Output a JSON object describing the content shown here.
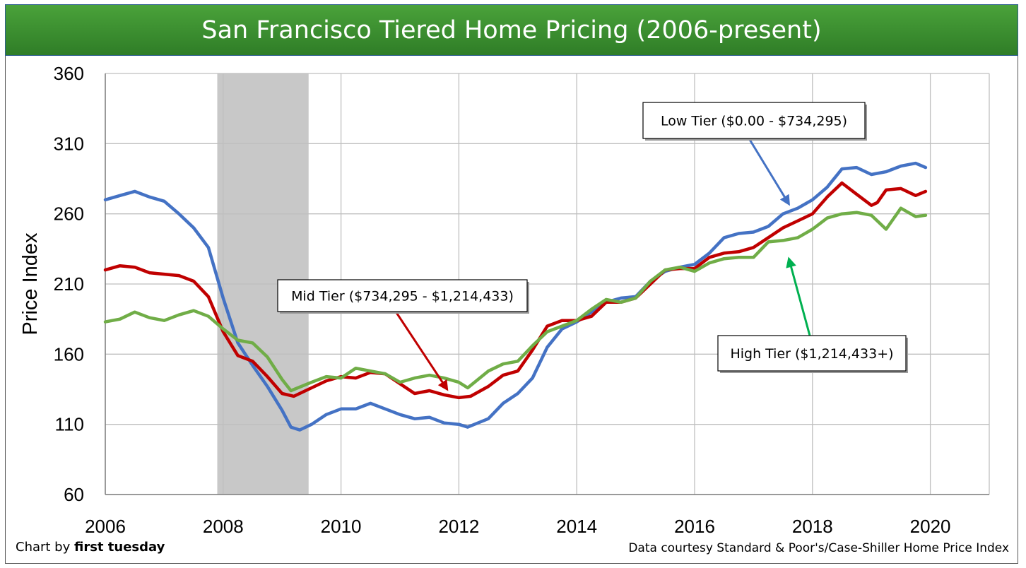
{
  "title": "San Francisco Tiered Home Pricing (2006-present)",
  "footer": {
    "credit_prefix": "Chart by ",
    "credit_name": "first tuesday",
    "source": "Data courtesy Standard & Poor's/Case-Shiller Home Price Index"
  },
  "chart_data": {
    "type": "line",
    "title": "San Francisco Tiered Home Pricing (2006-present)",
    "xlabel": "",
    "ylabel": "Price Index",
    "xlim": [
      2006,
      2021
    ],
    "ylim": [
      60,
      360
    ],
    "xticks": [
      2006,
      2008,
      2010,
      2012,
      2014,
      2016,
      2018,
      2020
    ],
    "yticks": [
      60,
      110,
      160,
      210,
      260,
      310,
      360
    ],
    "grid": true,
    "shaded_period": [
      2007.9,
      2009.45
    ],
    "shaded_color": "#c8c8c8",
    "series": [
      {
        "name": "Low Tier ($0.00 - $734,295)",
        "color": "#4472c4",
        "x": [
          2006.0,
          2006.25,
          2006.5,
          2006.75,
          2007.0,
          2007.25,
          2007.5,
          2007.75,
          2008.0,
          2008.25,
          2008.5,
          2008.75,
          2009.0,
          2009.15,
          2009.3,
          2009.5,
          2009.75,
          2010.0,
          2010.25,
          2010.5,
          2010.75,
          2011.0,
          2011.25,
          2011.5,
          2011.75,
          2012.0,
          2012.15,
          2012.5,
          2012.75,
          2013.0,
          2013.25,
          2013.5,
          2013.75,
          2014.0,
          2014.25,
          2014.5,
          2014.75,
          2015.0,
          2015.25,
          2015.5,
          2015.75,
          2016.0,
          2016.25,
          2016.5,
          2016.75,
          2017.0,
          2017.25,
          2017.5,
          2017.75,
          2018.0,
          2018.25,
          2018.5,
          2018.75,
          2019.0,
          2019.25,
          2019.5,
          2019.75,
          2019.92
        ],
        "values": [
          270,
          273,
          276,
          272,
          269,
          260,
          250,
          236,
          200,
          168,
          152,
          137,
          120,
          108,
          106,
          110,
          117,
          121,
          121,
          125,
          121,
          117,
          114,
          115,
          111,
          110,
          108,
          114,
          125,
          132,
          143,
          165,
          178,
          183,
          190,
          197,
          200,
          201,
          212,
          219,
          222,
          224,
          232,
          243,
          246,
          247,
          251,
          260,
          264,
          270,
          279,
          292,
          293,
          288,
          290,
          294,
          296,
          293
        ]
      },
      {
        "name": "Mid Tier ($734,295 - $1,214,433)",
        "color": "#c00000",
        "x": [
          2006.0,
          2006.25,
          2006.5,
          2006.75,
          2007.0,
          2007.25,
          2007.5,
          2007.75,
          2008.0,
          2008.25,
          2008.5,
          2008.75,
          2009.0,
          2009.2,
          2009.5,
          2009.75,
          2010.0,
          2010.25,
          2010.5,
          2010.75,
          2011.0,
          2011.25,
          2011.5,
          2011.75,
          2012.0,
          2012.2,
          2012.5,
          2012.75,
          2013.0,
          2013.25,
          2013.5,
          2013.75,
          2014.0,
          2014.25,
          2014.5,
          2014.75,
          2015.0,
          2015.25,
          2015.5,
          2015.75,
          2016.0,
          2016.25,
          2016.5,
          2016.75,
          2017.0,
          2017.25,
          2017.5,
          2017.75,
          2018.0,
          2018.25,
          2018.5,
          2018.75,
          2019.0,
          2019.1,
          2019.25,
          2019.5,
          2019.75,
          2019.92
        ],
        "values": [
          220,
          223,
          222,
          218,
          217,
          216,
          212,
          201,
          176,
          159,
          155,
          144,
          132,
          130,
          136,
          141,
          144,
          143,
          147,
          146,
          139,
          132,
          134,
          131,
          129,
          130,
          137,
          145,
          148,
          163,
          180,
          184,
          184,
          187,
          197,
          197,
          200,
          210,
          220,
          221,
          221,
          229,
          232,
          233,
          236,
          243,
          250,
          255,
          260,
          272,
          282,
          274,
          266,
          268,
          277,
          278,
          273,
          276
        ]
      },
      {
        "name": "High Tier ($1,214,433+)",
        "color": "#70ad47",
        "x": [
          2006.0,
          2006.25,
          2006.5,
          2006.75,
          2007.0,
          2007.25,
          2007.5,
          2007.75,
          2008.0,
          2008.25,
          2008.5,
          2008.75,
          2009.0,
          2009.15,
          2009.5,
          2009.75,
          2010.0,
          2010.25,
          2010.5,
          2010.75,
          2011.0,
          2011.25,
          2011.5,
          2011.75,
          2012.0,
          2012.15,
          2012.5,
          2012.75,
          2013.0,
          2013.25,
          2013.5,
          2013.75,
          2014.0,
          2014.25,
          2014.5,
          2014.75,
          2015.0,
          2015.25,
          2015.5,
          2015.75,
          2016.0,
          2016.25,
          2016.5,
          2016.75,
          2017.0,
          2017.25,
          2017.5,
          2017.75,
          2018.0,
          2018.25,
          2018.5,
          2018.75,
          2019.0,
          2019.25,
          2019.5,
          2019.75,
          2019.92
        ],
        "values": [
          183,
          185,
          190,
          186,
          184,
          188,
          191,
          187,
          178,
          170,
          168,
          158,
          142,
          134,
          140,
          144,
          143,
          150,
          148,
          146,
          140,
          143,
          145,
          143,
          140,
          136,
          148,
          153,
          155,
          166,
          176,
          180,
          184,
          192,
          199,
          197,
          200,
          212,
          220,
          222,
          219,
          225,
          228,
          229,
          229,
          240,
          241,
          243,
          249,
          257,
          260,
          261,
          259,
          249,
          264,
          258,
          259
        ]
      }
    ],
    "annotations": [
      {
        "text": "Low Tier ($0.00 - $734,295)",
        "target": [
          2017.6,
          267
        ]
      },
      {
        "text": "Mid Tier ($734,295 - $1,214,433)",
        "target": [
          2011.8,
          135
        ]
      },
      {
        "text": "High Tier ($1,214,433+)",
        "target": [
          2017.6,
          228
        ]
      }
    ]
  }
}
